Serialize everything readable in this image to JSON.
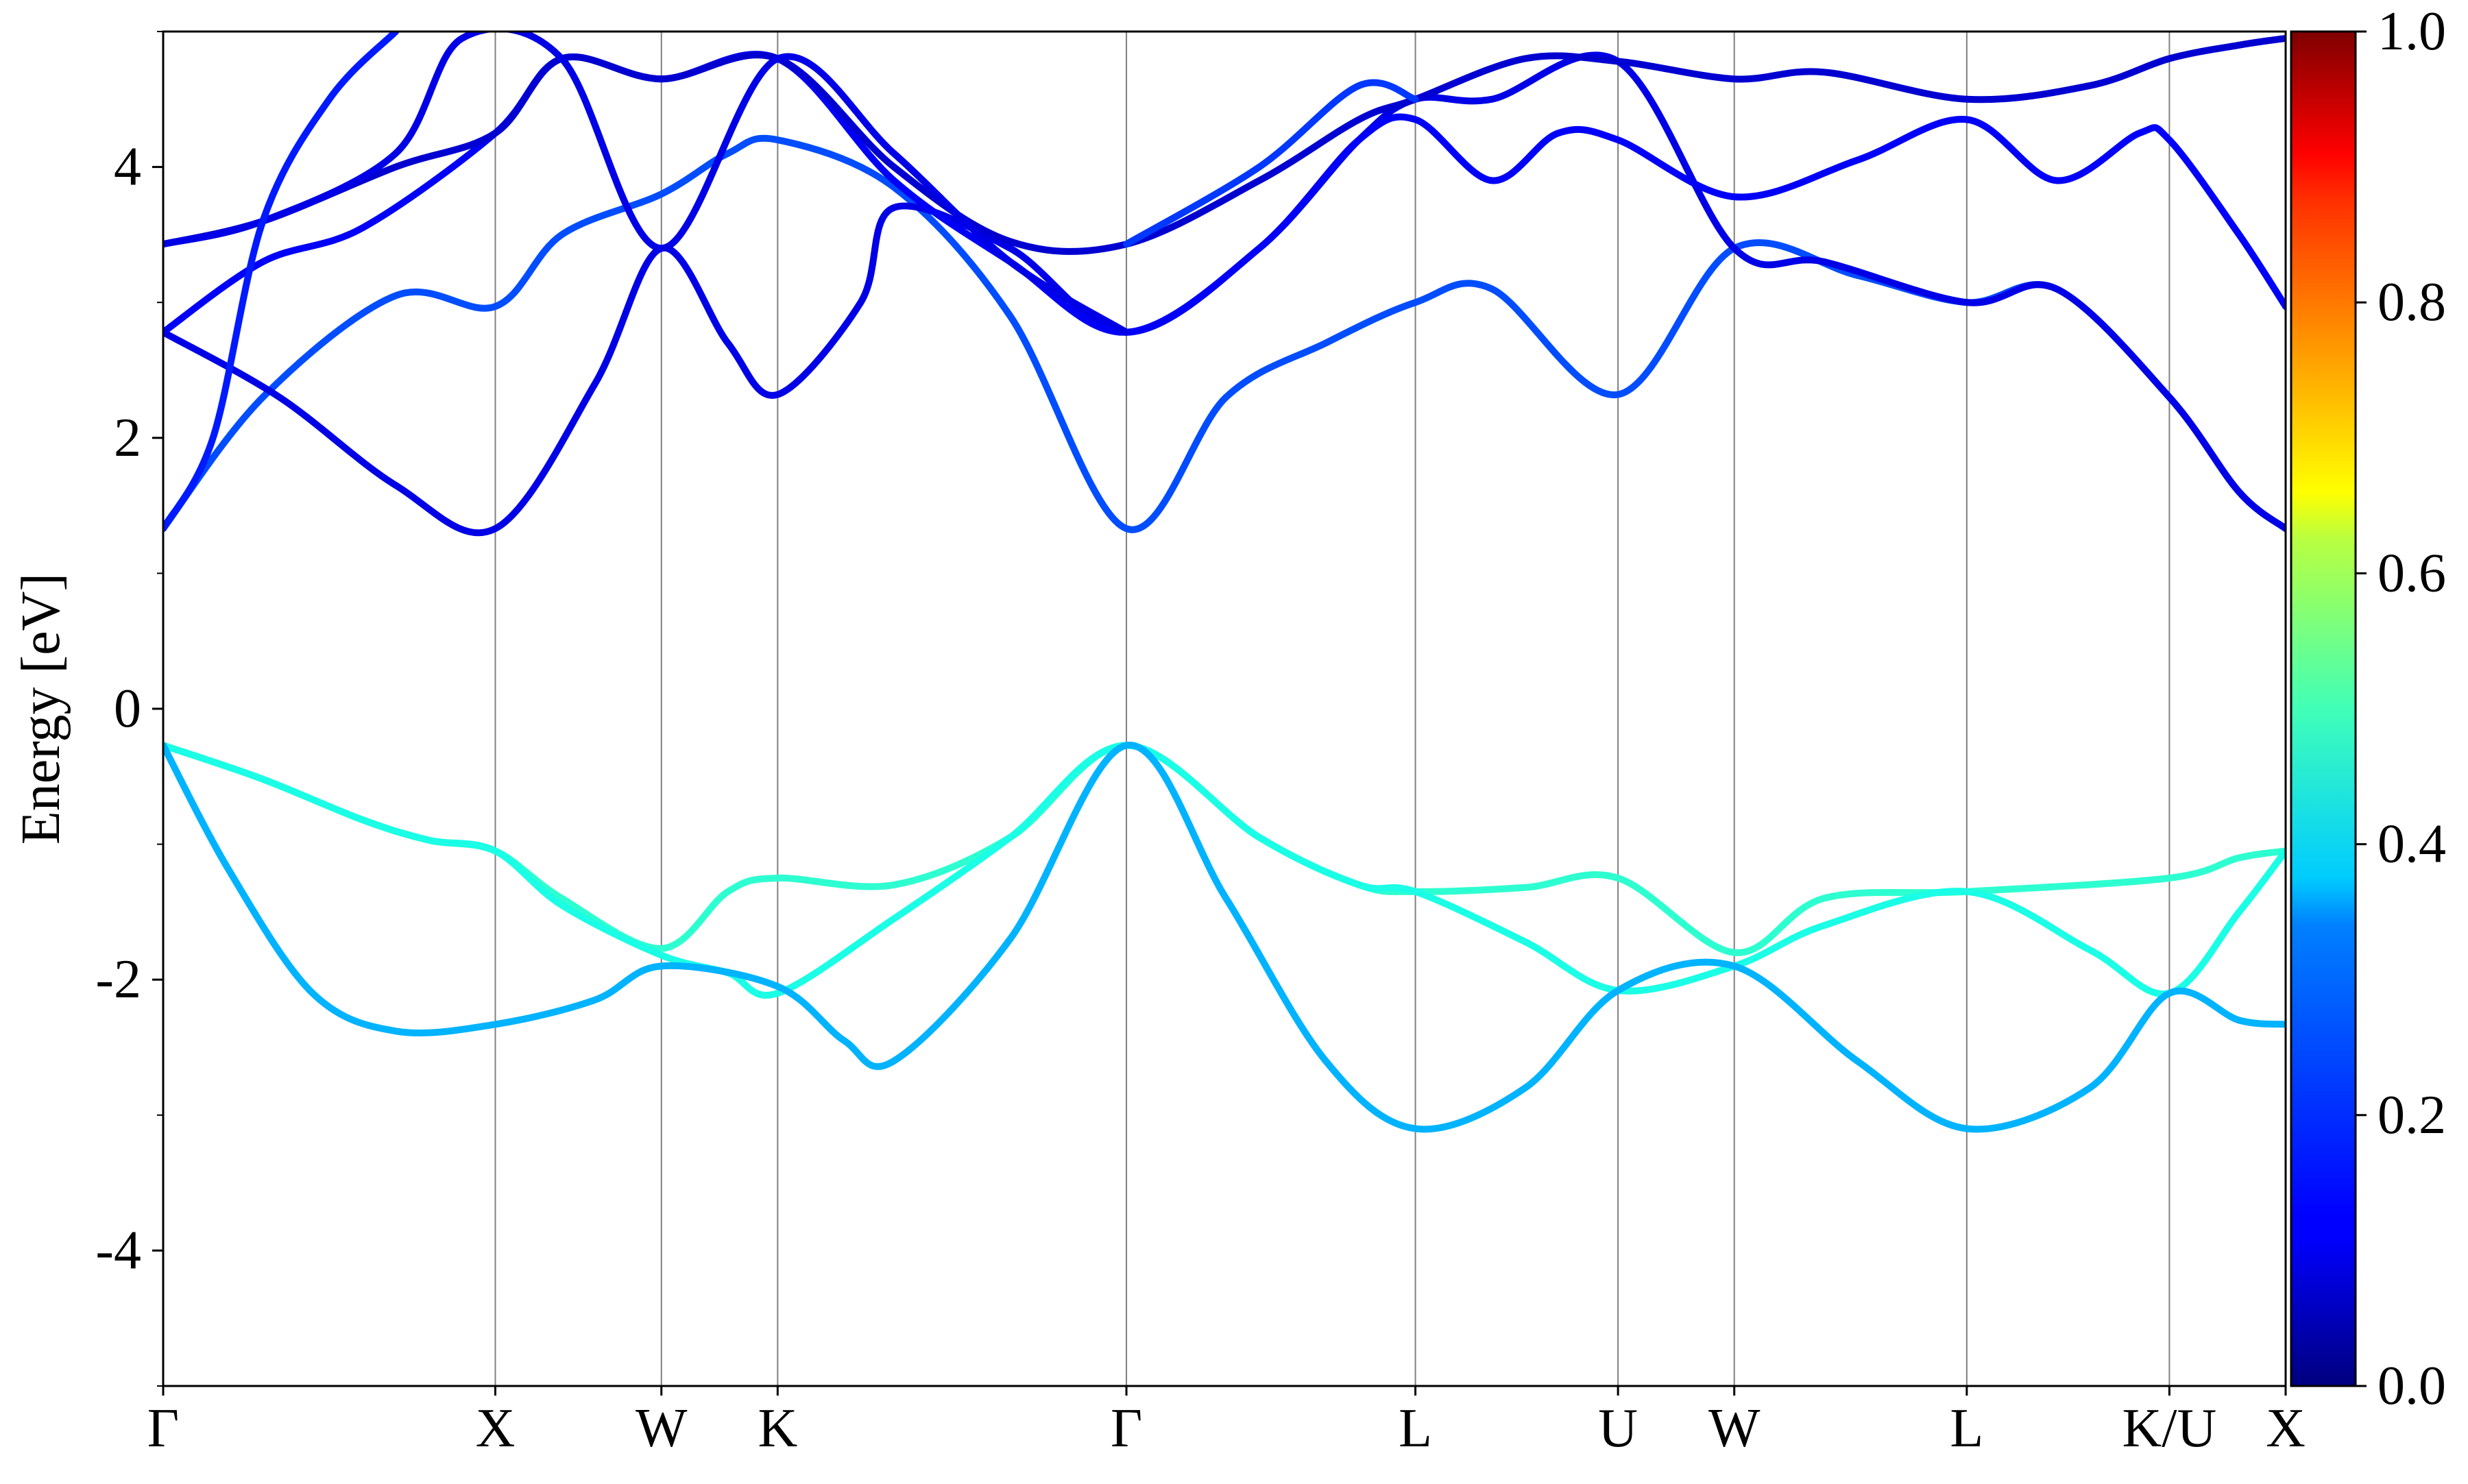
{
  "chart_data": {
    "type": "line",
    "title": "",
    "ylabel": "Energy [eV]",
    "xlabel": "",
    "ylim": [
      -5,
      5
    ],
    "yticks": [
      {
        "value": 4,
        "label": "4"
      },
      {
        "value": 2,
        "label": "2"
      },
      {
        "value": 0,
        "label": "0"
      },
      {
        "value": -2,
        "label": "-2"
      },
      {
        "value": -4,
        "label": "-4"
      }
    ],
    "y_minor_ticks": [
      -5,
      -3,
      -1,
      1,
      3,
      5
    ],
    "kpath": [
      {
        "label": "Γ",
        "x": 0.0
      },
      {
        "label": "X",
        "x": 1.0
      },
      {
        "label": "W",
        "x": 1.5
      },
      {
        "label": "K",
        "x": 1.85
      },
      {
        "label": "Γ",
        "x": 2.9
      },
      {
        "label": "L",
        "x": 3.77
      },
      {
        "label": "U",
        "x": 4.38
      },
      {
        "label": "W",
        "x": 4.73
      },
      {
        "label": "L",
        "x": 5.43
      },
      {
        "label": "K/U",
        "x": 6.04
      },
      {
        "label": "X",
        "x": 6.39
      }
    ],
    "colorbar": {
      "colormap": "jet",
      "range": [
        0.0,
        1.0
      ],
      "ticks": [
        {
          "value": 1.0,
          "label": "1.0"
        },
        {
          "value": 0.8,
          "label": "0.8"
        },
        {
          "value": 0.6,
          "label": "0.6"
        },
        {
          "value": 0.4,
          "label": "0.4"
        },
        {
          "value": 0.2,
          "label": "0.2"
        },
        {
          "value": 0.0,
          "label": "0.0"
        }
      ]
    },
    "series": [
      {
        "weight": 0.42,
        "points": [
          [
            0,
            -0.27
          ],
          [
            0.3,
            -0.52
          ],
          [
            0.6,
            -0.82
          ],
          [
            0.8,
            -0.97
          ],
          [
            1.0,
            -1.05
          ],
          [
            1.2,
            -1.4
          ],
          [
            1.5,
            -1.77
          ],
          [
            1.7,
            -1.35
          ],
          [
            1.85,
            -1.25
          ],
          [
            2.2,
            -1.3
          ],
          [
            2.55,
            -0.95
          ],
          [
            2.9,
            -0.27
          ],
          [
            3.3,
            -0.95
          ],
          [
            3.6,
            -1.3
          ],
          [
            3.77,
            -1.35
          ],
          [
            4.1,
            -1.32
          ],
          [
            4.38,
            -1.25
          ],
          [
            4.73,
            -1.8
          ],
          [
            5.0,
            -1.4
          ],
          [
            5.43,
            -1.35
          ],
          [
            6.04,
            -1.25
          ],
          [
            6.25,
            -1.1
          ],
          [
            6.39,
            -1.05
          ]
        ]
      },
      {
        "weight": 0.4,
        "points": [
          [
            0,
            -0.27
          ],
          [
            0.3,
            -0.52
          ],
          [
            0.6,
            -0.82
          ],
          [
            0.8,
            -0.97
          ],
          [
            1.0,
            -1.05
          ],
          [
            1.2,
            -1.45
          ],
          [
            1.5,
            -1.82
          ],
          [
            1.7,
            -1.95
          ],
          [
            1.85,
            -2.1
          ],
          [
            2.2,
            -1.55
          ],
          [
            2.55,
            -0.95
          ],
          [
            2.9,
            -0.27
          ],
          [
            3.3,
            -0.95
          ],
          [
            3.6,
            -1.3
          ],
          [
            3.77,
            -1.35
          ],
          [
            4.1,
            -1.72
          ],
          [
            4.38,
            -2.08
          ],
          [
            4.73,
            -1.9
          ],
          [
            5.0,
            -1.6
          ],
          [
            5.43,
            -1.35
          ],
          [
            5.8,
            -1.78
          ],
          [
            6.04,
            -2.1
          ],
          [
            6.25,
            -1.5
          ],
          [
            6.39,
            -1.05
          ]
        ]
      },
      {
        "weight": 0.3,
        "points": [
          [
            0,
            -0.27
          ],
          [
            0.2,
            -1.2
          ],
          [
            0.45,
            -2.1
          ],
          [
            0.7,
            -2.38
          ],
          [
            1.0,
            -2.33
          ],
          [
            1.3,
            -2.15
          ],
          [
            1.5,
            -1.9
          ],
          [
            1.85,
            -2.05
          ],
          [
            2.05,
            -2.45
          ],
          [
            2.2,
            -2.6
          ],
          [
            2.55,
            -1.7
          ],
          [
            2.9,
            -0.27
          ],
          [
            3.2,
            -1.4
          ],
          [
            3.5,
            -2.6
          ],
          [
            3.77,
            -3.1
          ],
          [
            4.1,
            -2.8
          ],
          [
            4.38,
            -2.08
          ],
          [
            4.73,
            -1.9
          ],
          [
            5.1,
            -2.6
          ],
          [
            5.43,
            -3.1
          ],
          [
            5.8,
            -2.8
          ],
          [
            6.04,
            -2.1
          ],
          [
            6.25,
            -2.3
          ],
          [
            6.39,
            -2.33
          ]
        ]
      },
      {
        "weight": 0.2,
        "points": [
          [
            0,
            1.33
          ],
          [
            0.3,
            2.3
          ],
          [
            0.7,
            3.05
          ],
          [
            1.0,
            2.97
          ],
          [
            1.2,
            3.5
          ],
          [
            1.5,
            3.8
          ],
          [
            1.7,
            4.1
          ],
          [
            1.85,
            4.2
          ],
          [
            2.2,
            3.85
          ],
          [
            2.55,
            2.9
          ],
          [
            2.9,
            1.33
          ],
          [
            3.2,
            2.3
          ],
          [
            3.5,
            2.7
          ],
          [
            3.77,
            3.0
          ],
          [
            4.0,
            3.1
          ],
          [
            4.38,
            2.32
          ],
          [
            4.73,
            3.4
          ],
          [
            5.1,
            3.2
          ],
          [
            5.43,
            3.0
          ],
          [
            5.7,
            3.1
          ],
          [
            6.04,
            2.3
          ],
          [
            6.25,
            1.6
          ],
          [
            6.39,
            1.33
          ]
        ]
      },
      {
        "weight": 0.1,
        "points": [
          [
            0,
            2.78
          ],
          [
            0.35,
            2.3
          ],
          [
            0.7,
            1.65
          ],
          [
            1.0,
            1.33
          ],
          [
            1.3,
            2.4
          ],
          [
            1.5,
            3.4
          ],
          [
            1.7,
            2.7
          ],
          [
            1.85,
            2.32
          ],
          [
            2.1,
            3.0
          ],
          [
            2.2,
            3.7
          ],
          [
            2.55,
            3.4
          ],
          [
            2.9,
            2.78
          ],
          [
            3.3,
            3.4
          ],
          [
            3.6,
            4.2
          ],
          [
            3.77,
            4.5
          ],
          [
            4.0,
            4.5
          ],
          [
            4.38,
            4.78
          ],
          [
            4.73,
            3.4
          ],
          [
            5.0,
            3.3
          ],
          [
            5.43,
            3.0
          ],
          [
            5.7,
            3.1
          ],
          [
            6.04,
            2.3
          ],
          [
            6.25,
            1.6
          ],
          [
            6.39,
            1.33
          ]
        ]
      },
      {
        "weight": 0.12,
        "points": [
          [
            0,
            2.78
          ],
          [
            0.3,
            3.3
          ],
          [
            0.6,
            3.55
          ],
          [
            1.0,
            4.25
          ],
          [
            1.2,
            4.8
          ],
          [
            1.5,
            4.65
          ],
          [
            1.85,
            4.8
          ],
          [
            2.2,
            3.9
          ],
          [
            2.55,
            3.3
          ],
          [
            2.9,
            2.78
          ],
          [
            3.3,
            3.4
          ],
          [
            3.6,
            4.2
          ],
          [
            3.77,
            4.35
          ],
          [
            4.0,
            3.9
          ],
          [
            4.2,
            4.25
          ],
          [
            4.38,
            4.2
          ],
          [
            4.73,
            3.78
          ],
          [
            5.1,
            4.05
          ],
          [
            5.43,
            4.35
          ],
          [
            5.7,
            3.9
          ],
          [
            5.95,
            4.25
          ],
          [
            6.04,
            4.2
          ],
          [
            6.25,
            3.5
          ],
          [
            6.39,
            2.97
          ]
        ]
      },
      {
        "weight": 0.08,
        "points": [
          [
            0,
            3.43
          ],
          [
            0.3,
            3.6
          ],
          [
            0.7,
            4.0
          ],
          [
            1.0,
            4.25
          ],
          [
            1.2,
            4.8
          ],
          [
            1.5,
            4.65
          ],
          [
            1.85,
            4.8
          ],
          [
            2.2,
            4.0
          ],
          [
            2.55,
            3.45
          ],
          [
            2.9,
            3.43
          ],
          [
            3.3,
            3.9
          ],
          [
            3.6,
            4.35
          ],
          [
            3.77,
            4.5
          ],
          [
            4.1,
            4.8
          ],
          [
            4.38,
            4.78
          ],
          [
            4.73,
            4.65
          ],
          [
            5.0,
            4.7
          ],
          [
            5.43,
            4.5
          ],
          [
            5.8,
            4.6
          ],
          [
            6.04,
            4.8
          ],
          [
            6.25,
            4.9
          ],
          [
            6.39,
            4.95
          ]
        ]
      },
      {
        "weight": 0.1,
        "points": [
          [
            0,
            3.43
          ],
          [
            0.3,
            3.6
          ],
          [
            0.7,
            4.1
          ],
          [
            0.9,
            4.95
          ],
          [
            1.2,
            4.8
          ],
          [
            1.5,
            3.4
          ],
          [
            1.85,
            4.8
          ],
          [
            2.2,
            4.1
          ],
          [
            2.55,
            3.3
          ],
          [
            2.9,
            2.78
          ]
        ]
      },
      {
        "weight": 0.15,
        "points": [
          [
            0,
            1.33
          ],
          [
            0.15,
            2.0
          ],
          [
            0.3,
            3.6
          ],
          [
            0.5,
            4.5
          ],
          [
            0.7,
            5.0
          ]
        ]
      },
      {
        "weight": 0.18,
        "points": [
          [
            2.9,
            3.43
          ],
          [
            3.3,
            4.0
          ],
          [
            3.6,
            4.6
          ],
          [
            3.77,
            4.5
          ]
        ]
      }
    ]
  }
}
